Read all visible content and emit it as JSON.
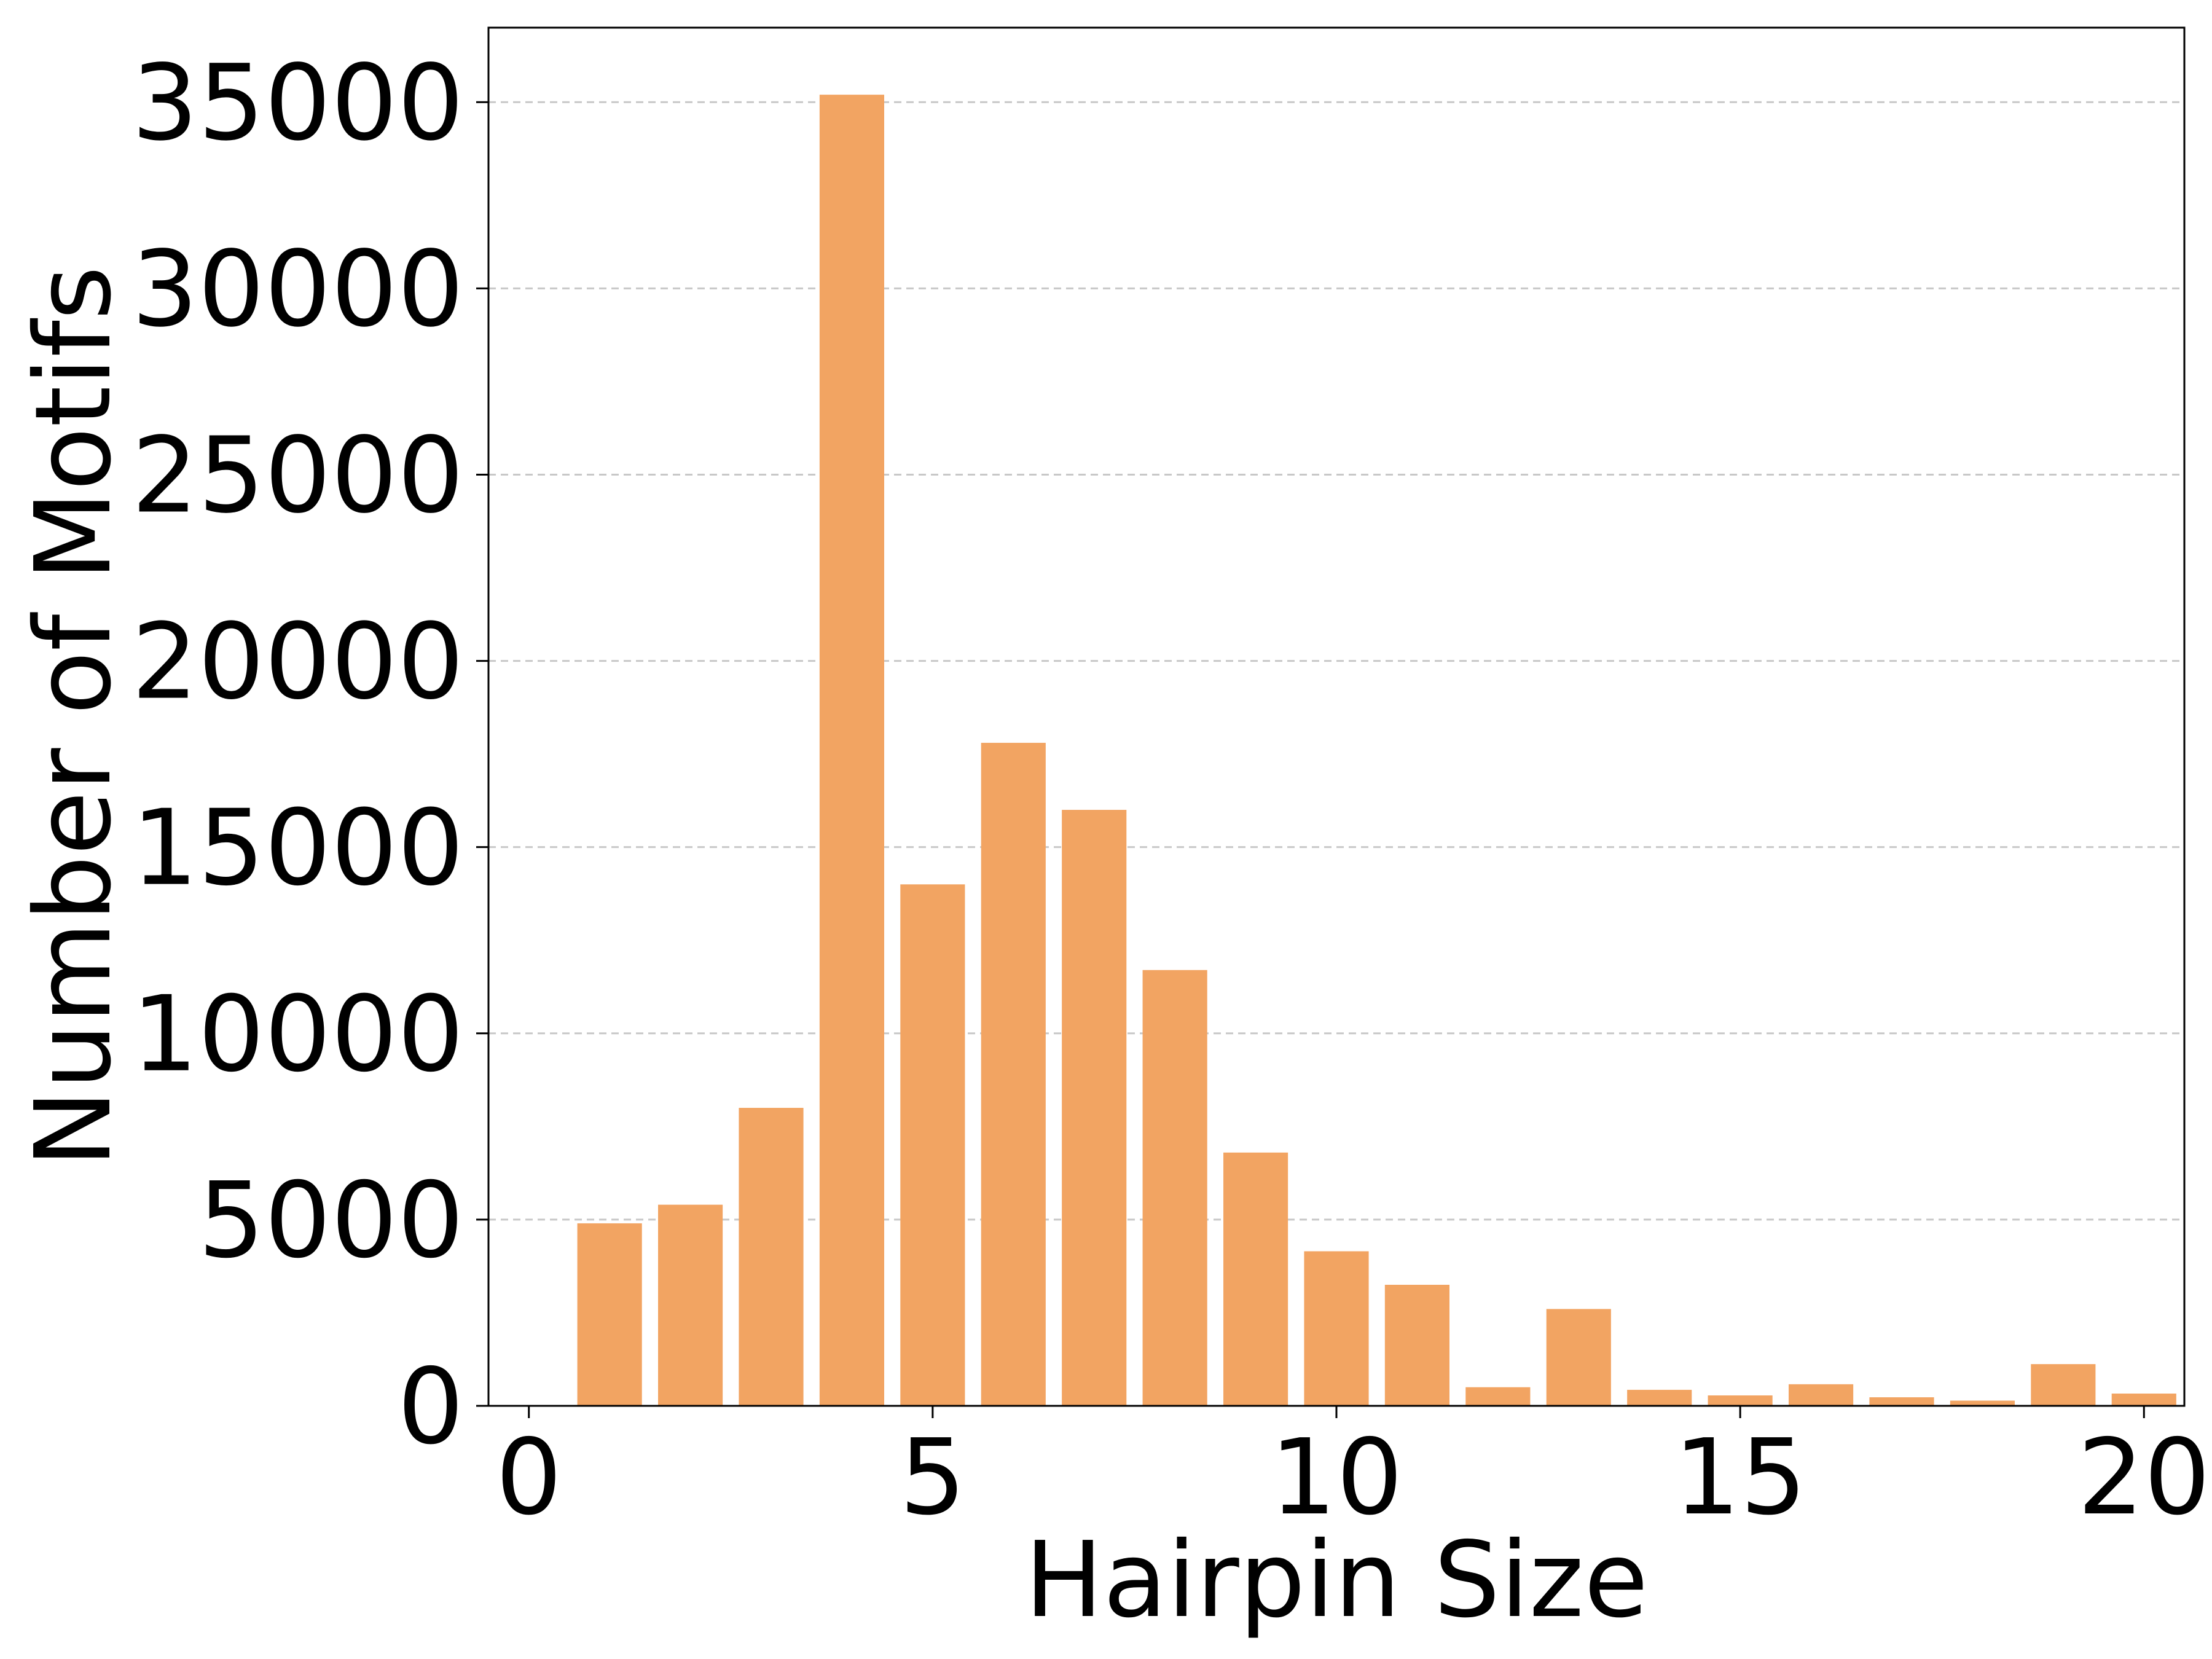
{
  "chart_data": {
    "type": "bar",
    "title": "",
    "xlabel": "Hairpin Size",
    "ylabel": "Number of Motifs",
    "x": [
      1,
      2,
      3,
      4,
      5,
      6,
      7,
      8,
      9,
      10,
      11,
      12,
      13,
      14,
      15,
      16,
      17,
      18,
      19,
      20
    ],
    "values": [
      4900,
      5400,
      8000,
      35200,
      14000,
      17800,
      16000,
      11700,
      6800,
      4150,
      3250,
      500,
      2600,
      430,
      280,
      580,
      230,
      140,
      1120,
      330
    ],
    "xlim": [
      -0.5,
      20.5
    ],
    "ylim": [
      0,
      37000
    ],
    "xticks": [
      0,
      5,
      10,
      15,
      20
    ],
    "yticks": [
      0,
      5000,
      10000,
      15000,
      20000,
      25000,
      30000,
      35000
    ],
    "grid": "y-dashed",
    "bar_color": "#f2a462",
    "legend": "none"
  }
}
